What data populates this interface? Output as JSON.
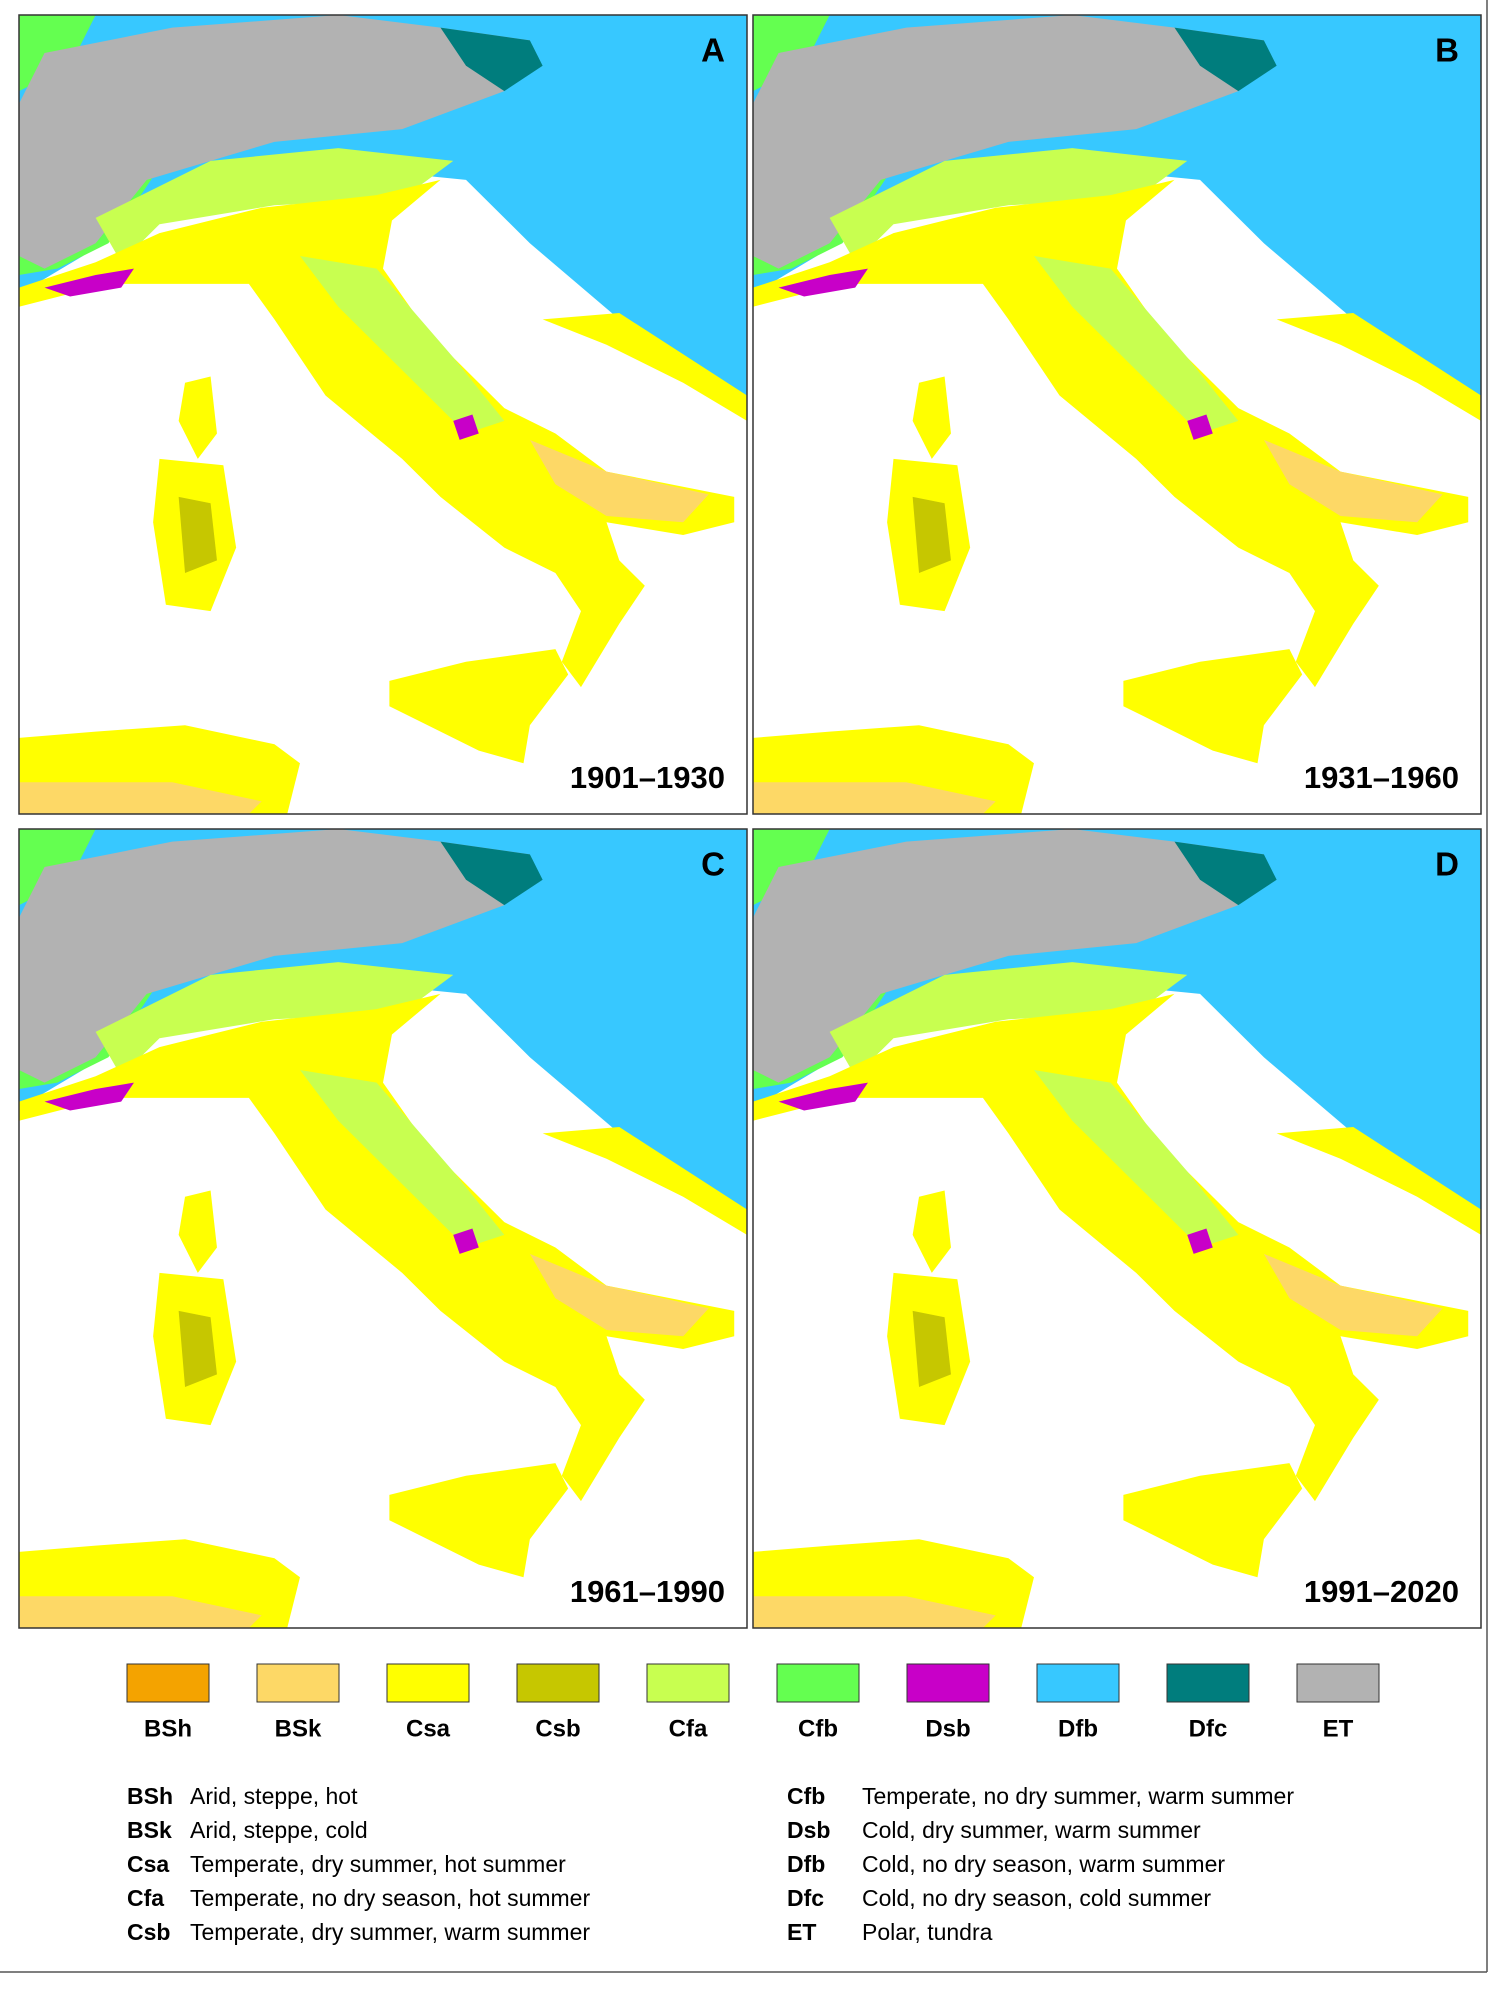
{
  "panels": [
    {
      "letter": "A",
      "period": "1901–1930"
    },
    {
      "letter": "B",
      "period": "1931–1960"
    },
    {
      "letter": "C",
      "period": "1961–1990"
    },
    {
      "letter": "D",
      "period": "1991–2020"
    }
  ],
  "legend": {
    "swatches": [
      {
        "code": "BSh",
        "color": "#f4a300"
      },
      {
        "code": "BSk",
        "color": "#fdd866"
      },
      {
        "code": "Csa",
        "color": "#ffff00"
      },
      {
        "code": "Csb",
        "color": "#c6c700"
      },
      {
        "code": "Cfa",
        "color": "#c8ff50"
      },
      {
        "code": "Cfb",
        "color": "#64ff50"
      },
      {
        "code": "Dsb",
        "color": "#c800c8"
      },
      {
        "code": "Dfb",
        "color": "#37c8ff"
      },
      {
        "code": "Dfc",
        "color": "#007d7d"
      },
      {
        "code": "ET",
        "color": "#b2b2b2"
      }
    ],
    "descriptions": [
      {
        "code": "BSh",
        "text": "Arid, steppe, hot"
      },
      {
        "code": "BSk",
        "text": "Arid, steppe, cold"
      },
      {
        "code": "Csa",
        "text": "Temperate, dry summer, hot summer"
      },
      {
        "code": "Cfa",
        "text": "Temperate, no dry season, hot summer"
      },
      {
        "code": "Csb",
        "text": "Temperate, dry summer, warm summer"
      },
      {
        "code": "Cfb",
        "text": "Temperate, no dry summer, warm summer"
      },
      {
        "code": "Dsb",
        "text": "Cold, dry summer, warm summer"
      },
      {
        "code": "Dfb",
        "text": "Cold, no dry season, warm summer"
      },
      {
        "code": "Dfc",
        "text": "Cold, no dry season, cold summer"
      },
      {
        "code": "ET",
        "text": "Polar, tundra"
      }
    ]
  }
}
